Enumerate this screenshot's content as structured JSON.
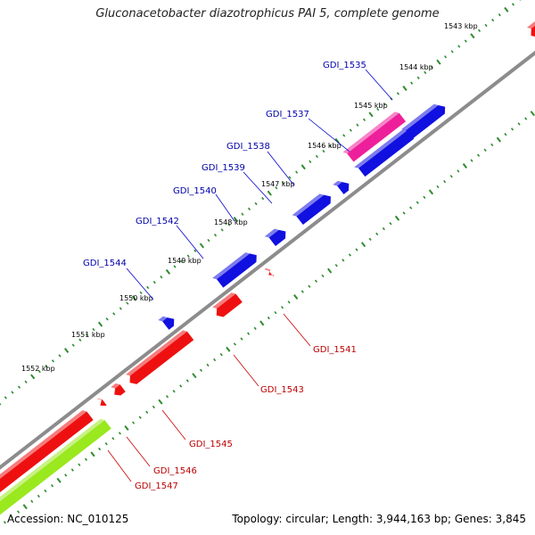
{
  "title": "Gluconacetobacter diazotrophicus PAI 5, complete genome",
  "footer": {
    "accession": "Accession: NC_010125",
    "summary": "Topology: circular; Length: 3,944,163 bp; Genes: 3,845"
  },
  "colors": {
    "backbone": "#8c8c8c",
    "tick": "#2e8b2e",
    "forward_gene": "#1010e0",
    "reverse_gene": "#ee1010",
    "rna_gene": "#ee1f9a",
    "other_feature": "#9ae81e",
    "forward_label": "#0000aa",
    "reverse_label": "#bb0000",
    "ruler_label": "#000000"
  },
  "ruler_labels": [
    "1543 kbp",
    "1544 kbp",
    "1545 kbp",
    "1546 kbp",
    "1547 kbp",
    "1548 kbp",
    "1549 kbp",
    "1550 kbp",
    "1551 kbp",
    "1552 kbp"
  ],
  "forward_gene_labels": [
    "GDI_1535",
    "GDI_1537",
    "GDI_1538",
    "GDI_1539",
    "GDI_1540",
    "GDI_1542",
    "GDI_1544"
  ],
  "reverse_gene_labels": [
    "GDI_1541",
    "GDI_1543",
    "GDI_1545",
    "GDI_1546",
    "GDI_1547"
  ]
}
